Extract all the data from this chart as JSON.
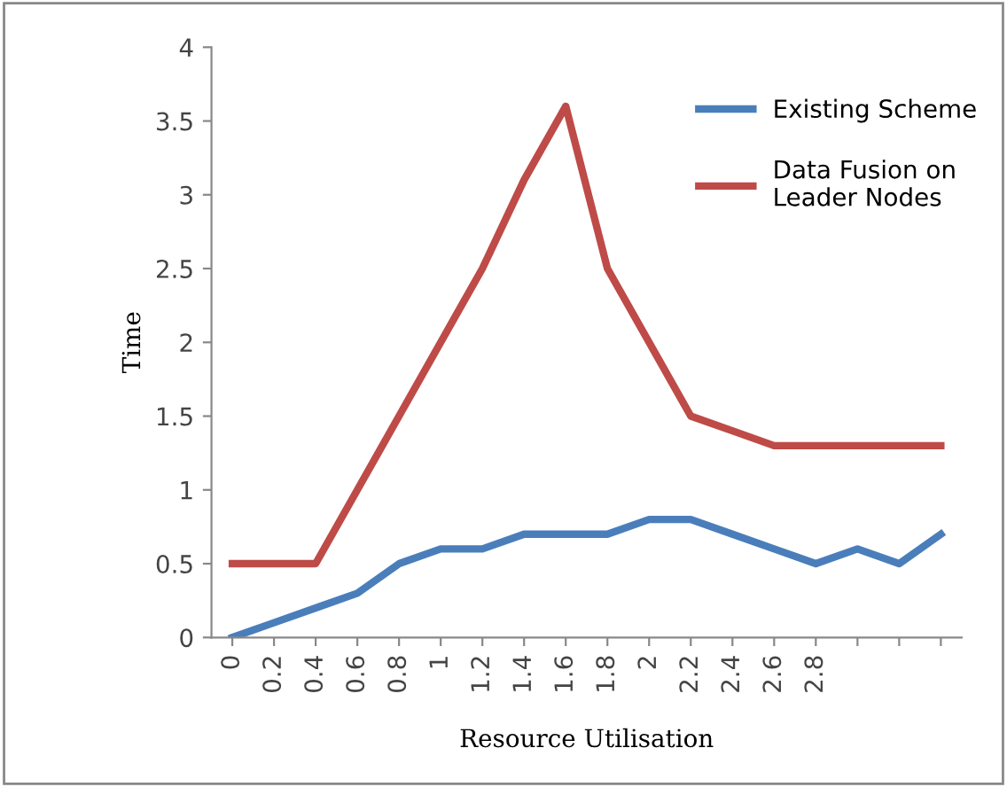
{
  "chart_data": {
    "type": "line",
    "xlabel": "Resource Utilisation",
    "ylabel": "Time",
    "categories": [
      "0",
      "0.2",
      "0.4",
      "0.6",
      "0.8",
      "1",
      "1.2",
      "1.4",
      "1.6",
      "1.8",
      "2",
      "2.2",
      "2.4",
      "2.6",
      "2.8",
      null,
      null,
      null
    ],
    "series": [
      {
        "name": "Existing Scheme",
        "color": "#4a7ebb",
        "values": [
          0,
          0.1,
          0.2,
          0.3,
          0.5,
          0.6,
          0.6,
          0.7,
          0.7,
          0.7,
          0.8,
          0.8,
          0.7,
          0.6,
          0.5,
          0.6,
          0.5,
          0.7
        ]
      },
      {
        "name": "Data Fusion on\nLeader Nodes",
        "color": "#be4b48",
        "values": [
          0.5,
          0.5,
          0.5,
          1.0,
          1.5,
          2.0,
          2.5,
          3.1,
          3.6,
          2.5,
          2.0,
          1.5,
          1.4,
          1.3,
          1.3,
          1.3,
          1.3,
          1.3
        ]
      }
    ],
    "ylim": [
      0,
      4
    ],
    "yticks": [
      0,
      0.5,
      1,
      1.5,
      2,
      2.5,
      3,
      3.5,
      4
    ],
    "grid": false,
    "legend": "right",
    "marker": "none",
    "line_style": "solid"
  }
}
